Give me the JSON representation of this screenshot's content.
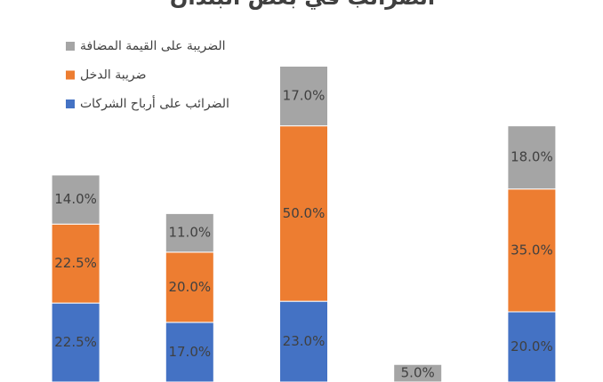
{
  "chart_data": {
    "type": "stacked_bar",
    "title": "الضرائب في بعض البلدان",
    "categories": [
      null,
      null,
      null,
      null,
      null
    ],
    "series": [
      {
        "name": "الضرائب على أرباح الشركات",
        "color": "#4472c4",
        "values": [
          22.5,
          17,
          23,
          null,
          20
        ],
        "value_labels": [
          "22.5%",
          "17.0%",
          "23.0%",
          null,
          "20.0%"
        ]
      },
      {
        "name": "ضريبة الدخل",
        "color": "#ed7d31",
        "values": [
          22.5,
          20,
          50,
          null,
          35
        ],
        "value_labels": [
          "22.5%",
          "20.0%",
          "50.0%",
          null,
          "35.0%"
        ]
      },
      {
        "name": "الضريبة على القيمة المضافة",
        "color": "#a5a5a5",
        "values": [
          14,
          11,
          17,
          5,
          18
        ],
        "value_labels": [
          "14.0%",
          "11.0%",
          "17.0%",
          "5.0%",
          "18.0%"
        ]
      }
    ],
    "ylim": [
      0,
      100
    ]
  }
}
